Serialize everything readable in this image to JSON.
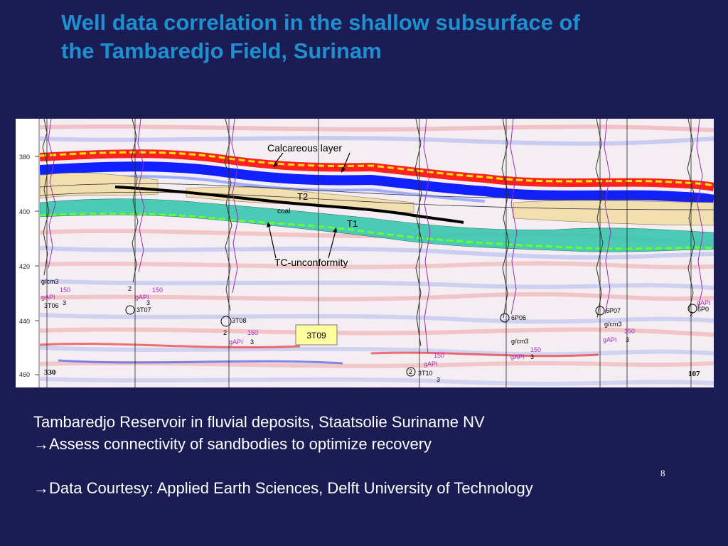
{
  "slide": {
    "title_line1": "Well data correlation in the shallow subsurface of",
    "title_line2": "the Tambaredjo Field, Surinam",
    "page_number": "8"
  },
  "figure": {
    "depth_ticks": [
      "380",
      "400",
      "420",
      "440",
      "460"
    ],
    "corner_left": "330",
    "corner_right": "107",
    "annotations": {
      "calcareous": "Calcareous layer",
      "t2": "T2",
      "coal": "coal",
      "t1": "T1",
      "tc": "TC-unconformity"
    },
    "wells": [
      {
        "id": "3T06",
        "scale_top": "g/cm3",
        "gapi": "gAPI",
        "v150": "150",
        "v3": "3"
      },
      {
        "id": "3T07",
        "scale_top": "2",
        "gapi": "gAPI",
        "v150": "150",
        "v3": "3"
      },
      {
        "id": "3T08",
        "scale_top": "2",
        "gapi": "gAPI",
        "v150": "150",
        "v3": "3"
      },
      {
        "id": "3T09"
      },
      {
        "id": "3T10",
        "scale_top": "2",
        "gapi": "gAPI",
        "v150": "150",
        "v3": "3"
      },
      {
        "id": "6P06",
        "scale_top": "g/cm3",
        "gapi": "gAPI",
        "v150": "150",
        "v3": "3"
      },
      {
        "id": "6P07",
        "scale_top": "g/cm3",
        "gapi": "gAPI",
        "v150": "150",
        "v3": "3"
      },
      {
        "id": "6P0",
        "scale_top": "2",
        "gapi": "gAPI",
        "v150": "",
        "v3": ""
      }
    ],
    "colors": {
      "calcareous_horizon": "#ffe800",
      "unconformity_horizon": "#66ff33",
      "reflector_red": "#ff2020",
      "reflector_blue": "#1020ff",
      "sand_teal": "#39c7b0",
      "sand_tan": "#f2dfb0",
      "coal_black": "#000000",
      "well_label_bg": "#ffffa0"
    }
  },
  "caption": {
    "line1": "Tambaredjo Reservoir in fluvial deposits, Staatsolie Suriname NV",
    "line2": "→Assess connectivity of sandbodies to optimize recovery",
    "line3": "→Data Courtesy: Applied Earth Sciences, Delft University of Technology"
  }
}
